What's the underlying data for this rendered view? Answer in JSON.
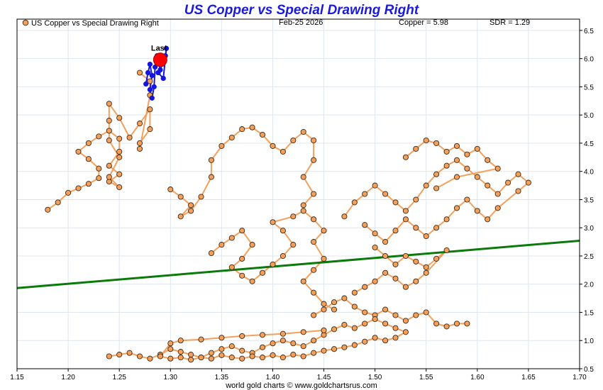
{
  "chart_data": {
    "type": "scatter",
    "title": "US Copper vs Special Drawing Right",
    "legend": "US Copper vs Special Drawing Right",
    "legend_position": "top-left",
    "date_label": "Feb-25  2026",
    "copper_label": "Copper = 5.98",
    "sdr_label": "SDR = 1.29",
    "last_label": "Last",
    "footer": "world gold charts © www.goldchartsrus.com",
    "xlim": [
      1.15,
      1.7
    ],
    "ylim": [
      0.5,
      6.7
    ],
    "x_ticks": [
      "1.15",
      "1.20",
      "1.25",
      "1.30",
      "1.35",
      "1.40",
      "1.45",
      "1.50",
      "1.55",
      "1.60",
      "1.65",
      "1.70"
    ],
    "y_ticks": [
      "0.5",
      "1.0",
      "1.5",
      "2.0",
      "2.5",
      "3.0",
      "3.5",
      "4.0",
      "4.5",
      "5.0",
      "5.5",
      "6.0",
      "6.5"
    ],
    "grid": true,
    "colors": {
      "title": "#1a1adb",
      "marker_fill": "#f5a05a",
      "marker_edge": "#3a2a1a",
      "path_line": "#f5a05a",
      "recent_marker": "#1515e0",
      "last_marker": "#ff0000",
      "trend_line": "#0a7a0a",
      "grid": "#dfe6ee"
    },
    "trend_line": {
      "x": [
        1.15,
        1.7
      ],
      "y": [
        1.93,
        2.77
      ]
    },
    "last_point": {
      "x": 1.29,
      "y": 5.98
    },
    "series": [
      {
        "points": [
          [
            1.18,
            3.32
          ],
          [
            1.19,
            3.45
          ],
          [
            1.2,
            3.62
          ],
          [
            1.21,
            3.7
          ],
          [
            1.22,
            3.78
          ],
          [
            1.23,
            3.88
          ],
          [
            1.23,
            4.05
          ],
          [
            1.22,
            4.22
          ],
          [
            1.21,
            4.35
          ],
          [
            1.22,
            4.5
          ],
          [
            1.23,
            4.62
          ],
          [
            1.24,
            4.72
          ],
          [
            1.25,
            4.58
          ],
          [
            1.25,
            4.35
          ],
          [
            1.24,
            4.1
          ],
          [
            1.25,
            3.95
          ],
          [
            1.24,
            3.82
          ],
          [
            1.25,
            3.72
          ],
          [
            1.24,
            3.9
          ],
          [
            1.25,
            4.25
          ],
          [
            1.24,
            4.55
          ],
          [
            1.24,
            4.9
          ],
          [
            1.24,
            5.2
          ],
          [
            1.25,
            4.95
          ],
          [
            1.26,
            4.6
          ],
          [
            1.27,
            4.85
          ],
          [
            1.28,
            5.1
          ],
          [
            1.28,
            4.75
          ],
          [
            1.27,
            4.5
          ],
          [
            1.27,
            4.4
          ],
          [
            1.28,
            5.35
          ],
          [
            1.28,
            5.6
          ],
          [
            1.27,
            5.75
          ]
        ]
      },
      {
        "points": [
          [
            1.3,
            3.68
          ],
          [
            1.31,
            3.55
          ],
          [
            1.32,
            3.4
          ],
          [
            1.31,
            3.2
          ],
          [
            1.32,
            3.3
          ],
          [
            1.33,
            3.55
          ],
          [
            1.34,
            3.9
          ],
          [
            1.34,
            4.2
          ],
          [
            1.35,
            4.45
          ],
          [
            1.36,
            4.6
          ],
          [
            1.37,
            4.75
          ],
          [
            1.38,
            4.78
          ],
          [
            1.39,
            4.65
          ],
          [
            1.4,
            4.45
          ],
          [
            1.41,
            4.35
          ],
          [
            1.42,
            4.55
          ],
          [
            1.43,
            4.7
          ],
          [
            1.44,
            4.55
          ],
          [
            1.44,
            4.2
          ],
          [
            1.43,
            3.9
          ],
          [
            1.44,
            3.6
          ],
          [
            1.43,
            3.4
          ]
        ]
      },
      {
        "points": [
          [
            1.34,
            2.55
          ],
          [
            1.35,
            2.7
          ],
          [
            1.36,
            2.82
          ],
          [
            1.37,
            2.95
          ],
          [
            1.38,
            2.7
          ],
          [
            1.37,
            2.45
          ],
          [
            1.36,
            2.3
          ],
          [
            1.37,
            2.15
          ],
          [
            1.38,
            2.05
          ],
          [
            1.39,
            2.2
          ],
          [
            1.4,
            2.35
          ],
          [
            1.41,
            2.5
          ],
          [
            1.42,
            2.7
          ],
          [
            1.41,
            2.95
          ],
          [
            1.4,
            3.1
          ],
          [
            1.42,
            3.2
          ],
          [
            1.43,
            3.3
          ],
          [
            1.44,
            3.15
          ],
          [
            1.45,
            2.95
          ],
          [
            1.44,
            2.75
          ],
          [
            1.45,
            2.45
          ],
          [
            1.44,
            2.25
          ],
          [
            1.43,
            2.05
          ],
          [
            1.44,
            1.85
          ],
          [
            1.45,
            1.65
          ],
          [
            1.46,
            1.55
          ]
        ]
      },
      {
        "points": [
          [
            1.47,
            3.2
          ],
          [
            1.48,
            3.45
          ],
          [
            1.49,
            3.6
          ],
          [
            1.5,
            3.75
          ],
          [
            1.51,
            3.6
          ],
          [
            1.52,
            3.45
          ],
          [
            1.53,
            3.3
          ],
          [
            1.54,
            3.5
          ],
          [
            1.55,
            3.75
          ],
          [
            1.56,
            3.95
          ],
          [
            1.57,
            4.1
          ],
          [
            1.58,
            4.2
          ],
          [
            1.59,
            4.05
          ],
          [
            1.6,
            3.9
          ],
          [
            1.61,
            3.75
          ],
          [
            1.62,
            3.6
          ],
          [
            1.63,
            3.8
          ],
          [
            1.64,
            3.95
          ],
          [
            1.65,
            3.8
          ],
          [
            1.64,
            3.65
          ],
          [
            1.62,
            3.35
          ],
          [
            1.61,
            3.15
          ],
          [
            1.6,
            3.3
          ],
          [
            1.59,
            3.5
          ],
          [
            1.58,
            3.35
          ],
          [
            1.57,
            3.15
          ],
          [
            1.56,
            3.0
          ],
          [
            1.55,
            2.85
          ],
          [
            1.54,
            3.0
          ],
          [
            1.53,
            3.15
          ],
          [
            1.52,
            2.95
          ],
          [
            1.51,
            2.75
          ],
          [
            1.5,
            2.9
          ],
          [
            1.49,
            3.05
          ]
        ]
      },
      {
        "points": [
          [
            1.53,
            4.25
          ],
          [
            1.54,
            4.4
          ],
          [
            1.55,
            4.55
          ],
          [
            1.56,
            4.5
          ],
          [
            1.57,
            4.35
          ],
          [
            1.58,
            4.45
          ],
          [
            1.59,
            4.3
          ],
          [
            1.6,
            4.4
          ],
          [
            1.61,
            4.2
          ],
          [
            1.62,
            4.05
          ],
          [
            1.58,
            3.9
          ],
          [
            1.56,
            3.7
          ]
        ]
      },
      {
        "points": [
          [
            1.5,
            2.65
          ],
          [
            1.51,
            2.5
          ],
          [
            1.52,
            2.35
          ],
          [
            1.53,
            2.5
          ],
          [
            1.54,
            2.4
          ],
          [
            1.55,
            2.3
          ],
          [
            1.56,
            2.45
          ],
          [
            1.57,
            2.6
          ],
          [
            1.55,
            2.2
          ],
          [
            1.54,
            2.05
          ],
          [
            1.53,
            1.95
          ],
          [
            1.52,
            2.1
          ],
          [
            1.51,
            2.2
          ],
          [
            1.5,
            2.05
          ],
          [
            1.49,
            1.95
          ],
          [
            1.48,
            1.85
          ]
        ]
      },
      {
        "points": [
          [
            1.44,
            1.45
          ],
          [
            1.45,
            1.55
          ],
          [
            1.46,
            1.68
          ],
          [
            1.47,
            1.75
          ],
          [
            1.48,
            1.6
          ],
          [
            1.49,
            1.5
          ],
          [
            1.5,
            1.45
          ],
          [
            1.51,
            1.55
          ],
          [
            1.52,
            1.45
          ],
          [
            1.53,
            1.35
          ],
          [
            1.54,
            1.45
          ],
          [
            1.55,
            1.5
          ],
          [
            1.56,
            1.3
          ],
          [
            1.57,
            1.25
          ],
          [
            1.58,
            1.3
          ],
          [
            1.59,
            1.3
          ]
        ]
      },
      {
        "points": [
          [
            1.24,
            0.72
          ],
          [
            1.25,
            0.75
          ],
          [
            1.26,
            0.78
          ],
          [
            1.27,
            0.72
          ],
          [
            1.28,
            0.68
          ],
          [
            1.29,
            0.75
          ],
          [
            1.3,
            0.85
          ],
          [
            1.31,
            0.8
          ],
          [
            1.32,
            0.75
          ],
          [
            1.33,
            0.7
          ],
          [
            1.34,
            0.78
          ],
          [
            1.35,
            0.85
          ],
          [
            1.36,
            0.9
          ],
          [
            1.37,
            0.82
          ],
          [
            1.38,
            0.78
          ],
          [
            1.39,
            0.88
          ],
          [
            1.4,
            0.95
          ],
          [
            1.41,
            1.0
          ],
          [
            1.42,
            0.95
          ],
          [
            1.43,
            0.9
          ],
          [
            1.44,
            1.0
          ],
          [
            1.45,
            1.1
          ],
          [
            1.46,
            1.2
          ],
          [
            1.47,
            1.28
          ],
          [
            1.48,
            1.22
          ],
          [
            1.49,
            1.3
          ],
          [
            1.5,
            1.38
          ],
          [
            1.51,
            1.3
          ],
          [
            1.52,
            1.22
          ],
          [
            1.53,
            1.15
          ],
          [
            1.52,
            1.05
          ],
          [
            1.51,
            1.0
          ],
          [
            1.5,
            1.05
          ],
          [
            1.49,
            0.98
          ],
          [
            1.48,
            0.92
          ],
          [
            1.47,
            0.88
          ],
          [
            1.46,
            0.85
          ],
          [
            1.45,
            0.82
          ],
          [
            1.44,
            0.78
          ],
          [
            1.43,
            0.72
          ],
          [
            1.42,
            0.75
          ],
          [
            1.41,
            0.7
          ],
          [
            1.4,
            0.74
          ],
          [
            1.39,
            0.7
          ],
          [
            1.38,
            0.72
          ],
          [
            1.37,
            0.68
          ],
          [
            1.36,
            0.7
          ],
          [
            1.35,
            0.74
          ],
          [
            1.34,
            0.68
          ],
          [
            1.33,
            0.7
          ],
          [
            1.32,
            0.66
          ],
          [
            1.31,
            0.7
          ],
          [
            1.3,
            0.68
          ],
          [
            1.29,
            0.72
          ],
          [
            1.3,
            0.95
          ],
          [
            1.31,
            1.0
          ],
          [
            1.33,
            1.02
          ],
          [
            1.35,
            1.05
          ],
          [
            1.37,
            1.08
          ],
          [
            1.39,
            1.1
          ],
          [
            1.41,
            1.12
          ],
          [
            1.43,
            1.15
          ],
          [
            1.45,
            1.18
          ]
        ]
      },
      {
        "color": "recent",
        "points": [
          [
            1.276,
            5.55
          ],
          [
            1.278,
            5.75
          ],
          [
            1.28,
            5.9
          ],
          [
            1.282,
            5.7
          ],
          [
            1.28,
            5.45
          ],
          [
            1.282,
            5.3
          ],
          [
            1.284,
            5.5
          ],
          [
            1.285,
            5.85
          ],
          [
            1.287,
            6.05
          ],
          [
            1.29,
            5.8
          ],
          [
            1.292,
            5.9
          ],
          [
            1.295,
            6.05
          ],
          [
            1.296,
            6.18
          ],
          [
            1.293,
            5.65
          ],
          [
            1.288,
            5.75
          ]
        ]
      }
    ]
  }
}
